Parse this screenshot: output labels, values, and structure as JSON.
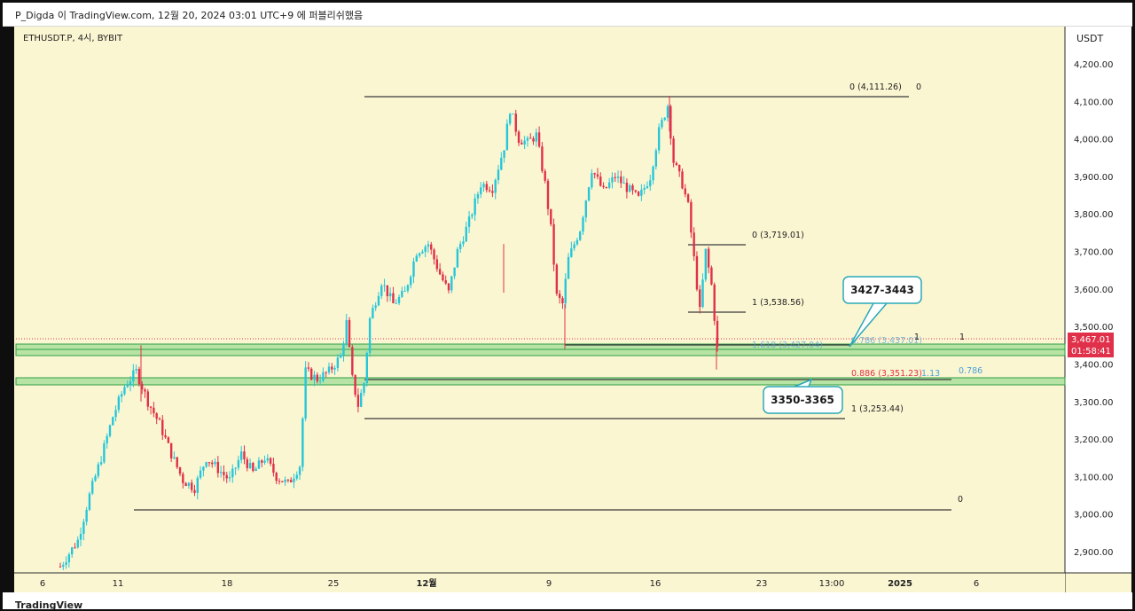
{
  "header": {
    "caption": "P_Digda 이 TradingView.com, 12월 20, 2024 03:01 UTC+9 에 퍼블리쉬했음"
  },
  "footer": {
    "brand": "TradingView"
  },
  "symbol": {
    "label": "ETHUSDT.P, 4시, BYBIT"
  },
  "price_scale": {
    "currency": "USDT"
  },
  "last_price": {
    "value": "3,467.01",
    "countdown": "01:58:41"
  },
  "colors": {
    "background": "#fbf6d2",
    "up": "#26c6da",
    "down": "#e0304a",
    "zone_fill": "#7fd67f",
    "zone_stroke": "#2f9e44",
    "fib_blue": "#4aa3d8",
    "fib_red": "#e0304a",
    "line": "#3a3a3a",
    "callout_border": "#2aa8b8",
    "last_price_bg": "#e0304a"
  },
  "chart_data": {
    "type": "candlestick",
    "x_tick_labels": [
      "6",
      "11",
      "18",
      "25",
      "12월",
      "9",
      "16",
      "23",
      "13:00",
      "2025",
      "6"
    ],
    "y_tick_labels": [
      "4,200.00",
      "4,100.00",
      "4,000.00",
      "3,900.00",
      "3,800.00",
      "3,700.00",
      "3,600.00",
      "3,500.00",
      "3,400.00",
      "3,300.00",
      "3,200.00",
      "3,100.00",
      "3,000.00",
      "2,900.00"
    ],
    "ylim": [
      2855,
      4265
    ],
    "y_tick_values": [
      4200,
      4100,
      4000,
      3900,
      3800,
      3700,
      3600,
      3500,
      3400,
      3300,
      3200,
      3100,
      3000,
      2900
    ],
    "price_path": [
      [
        0,
        2860
      ],
      [
        6,
        2930
      ],
      [
        10,
        3050
      ],
      [
        14,
        3150
      ],
      [
        18,
        3260
      ],
      [
        22,
        3340
      ],
      [
        26,
        3380
      ],
      [
        30,
        3300
      ],
      [
        34,
        3240
      ],
      [
        38,
        3160
      ],
      [
        42,
        3090
      ],
      [
        46,
        3070
      ],
      [
        50,
        3150
      ],
      [
        54,
        3120
      ],
      [
        58,
        3090
      ],
      [
        62,
        3160
      ],
      [
        66,
        3110
      ],
      [
        70,
        3150
      ],
      [
        74,
        3100
      ],
      [
        78,
        3080
      ],
      [
        82,
        3130
      ],
      [
        84,
        3380
      ],
      [
        88,
        3360
      ],
      [
        92,
        3380
      ],
      [
        96,
        3420
      ],
      [
        98,
        3510
      ],
      [
        100,
        3360
      ],
      [
        102,
        3290
      ],
      [
        104,
        3350
      ],
      [
        106,
        3520
      ],
      [
        110,
        3620
      ],
      [
        114,
        3560
      ],
      [
        118,
        3590
      ],
      [
        122,
        3700
      ],
      [
        126,
        3720
      ],
      [
        130,
        3640
      ],
      [
        133,
        3590
      ],
      [
        136,
        3700
      ],
      [
        140,
        3780
      ],
      [
        144,
        3880
      ],
      [
        148,
        3870
      ],
      [
        152,
        3980
      ],
      [
        154,
        4080
      ],
      [
        157,
        4000
      ],
      [
        160,
        3990
      ],
      [
        163,
        4010
      ],
      [
        166,
        3880
      ],
      [
        168,
        3760
      ],
      [
        170,
        3580
      ],
      [
        172,
        3560
      ],
      [
        174,
        3680
      ],
      [
        178,
        3760
      ],
      [
        182,
        3920
      ],
      [
        186,
        3860
      ],
      [
        190,
        3900
      ],
      [
        194,
        3870
      ],
      [
        198,
        3840
      ],
      [
        202,
        3900
      ],
      [
        205,
        4020
      ],
      [
        208,
        4090
      ],
      [
        210,
        3940
      ],
      [
        213,
        3880
      ],
      [
        215,
        3820
      ],
      [
        217,
        3680
      ],
      [
        219,
        3540
      ],
      [
        221,
        3700
      ],
      [
        223,
        3610
      ],
      [
        225,
        3440
      ]
    ],
    "candle_count": 226,
    "horizontal_levels": [
      {
        "label": "0 (4,111.26)",
        "trail": "0",
        "price": 4111.26
      },
      {
        "label": "0 (3,719.01)",
        "price": 3719.01
      },
      {
        "label": "1 (3,538.56)",
        "price": 3538.56
      },
      {
        "label": "1.618 (3,427.04)",
        "price": 3427.04
      },
      {
        "label": "0.786 (3,437.01)",
        "trail": "1",
        "trail2": "1",
        "price": 3437.01
      },
      {
        "label": "0.886 (3,351.23)",
        "trail": "1.13",
        "trail2": "0.786",
        "price": 3351.23
      },
      {
        "label": "1 (3,253.44)",
        "price": 3253.44
      },
      {
        "label": "",
        "trail": "0",
        "price": 3010
      }
    ],
    "zones": [
      {
        "label": "3427-3443",
        "low": 3427,
        "high": 3443
      },
      {
        "label": "3350-3365",
        "low": 3350,
        "high": 3365
      }
    ],
    "last_price": 3467.01
  }
}
